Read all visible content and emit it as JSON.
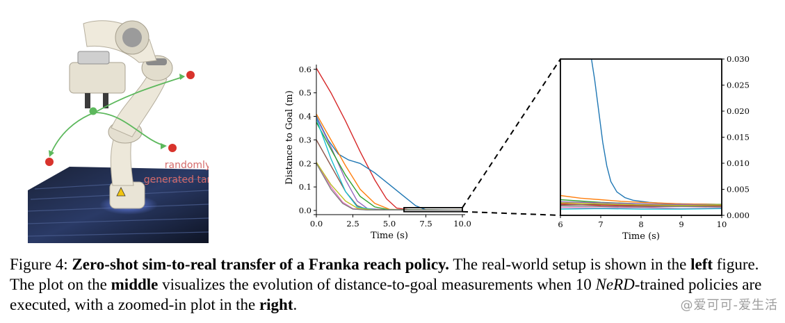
{
  "figure": {
    "label": "Figure 4:",
    "title": "Zero-shot sim-to-real transfer of a Franka reach policy.",
    "caption_parts": [
      " The real-world setup is shown in the ",
      "left",
      " figure. The plot on the ",
      "middle",
      " visualizes the evolution of distance-to-goal measurements when 10 ",
      "NeRD",
      "-trained policies are executed, with a zoomed-in plot in the ",
      "right",
      "."
    ]
  },
  "photo": {
    "annotation_line1": "randomly",
    "annotation_line2": "generated targets",
    "colors": {
      "target": "#d8332c",
      "start": "#5cb85c",
      "arrow": "#5cb85c",
      "label": "#d46a6a"
    }
  },
  "watermark": "@爱可可-爱生活",
  "chart_data": [
    {
      "type": "line",
      "xlabel": "Time (s)",
      "ylabel": "Distance to Goal (m)",
      "xlim": [
        0,
        10
      ],
      "ylim": [
        0,
        0.62
      ],
      "xticks": [
        "0.0",
        "2.5",
        "5.0",
        "7.5",
        "10.0"
      ],
      "yticks": [
        "0.0",
        "0.1",
        "0.2",
        "0.3",
        "0.4",
        "0.5",
        "0.6"
      ],
      "zoom_box": {
        "x": [
          6,
          10
        ],
        "y": [
          0,
          0.03
        ]
      },
      "series": [
        {
          "color": "#d62728",
          "points": [
            [
              0,
              0.605
            ],
            [
              1,
              0.5
            ],
            [
              2,
              0.38
            ],
            [
              3,
              0.25
            ],
            [
              4,
              0.13
            ],
            [
              4.8,
              0.05
            ],
            [
              5.5,
              0.01
            ],
            [
              6.5,
              0.002
            ],
            [
              10,
              0.002
            ]
          ]
        },
        {
          "color": "#1f77b4",
          "points": [
            [
              0,
              0.4
            ],
            [
              0.8,
              0.3
            ],
            [
              1.5,
              0.24
            ],
            [
              2.2,
              0.215
            ],
            [
              3,
              0.2
            ],
            [
              4,
              0.16
            ],
            [
              5,
              0.11
            ],
            [
              6,
              0.06
            ],
            [
              6.8,
              0.02
            ],
            [
              7.5,
              0.003
            ],
            [
              10,
              0.002
            ]
          ]
        },
        {
          "color": "#ff7f0e",
          "points": [
            [
              0,
              0.41
            ],
            [
              1,
              0.3
            ],
            [
              2,
              0.19
            ],
            [
              3,
              0.09
            ],
            [
              4,
              0.03
            ],
            [
              5,
              0.005
            ],
            [
              6,
              0.003
            ],
            [
              10,
              0.002
            ]
          ]
        },
        {
          "color": "#9467bd",
          "points": [
            [
              0,
              0.395
            ],
            [
              1,
              0.27
            ],
            [
              2,
              0.13
            ],
            [
              2.8,
              0.04
            ],
            [
              3.5,
              0.008
            ],
            [
              5,
              0.002
            ],
            [
              10,
              0.002
            ]
          ]
        },
        {
          "color": "#8c564b",
          "points": [
            [
              0,
              0.3
            ],
            [
              1,
              0.19
            ],
            [
              2,
              0.08
            ],
            [
              2.8,
              0.02
            ],
            [
              3.5,
              0.004
            ],
            [
              10,
              0.002
            ]
          ]
        },
        {
          "color": "#2ca02c",
          "points": [
            [
              0,
              0.375
            ],
            [
              1,
              0.26
            ],
            [
              2,
              0.15
            ],
            [
              3,
              0.06
            ],
            [
              4,
              0.015
            ],
            [
              5,
              0.003
            ],
            [
              10,
              0.002
            ]
          ]
        },
        {
          "color": "#17becf",
          "points": [
            [
              0,
              0.39
            ],
            [
              1,
              0.22
            ],
            [
              2,
              0.08
            ],
            [
              2.8,
              0.015
            ],
            [
              4,
              0.003
            ],
            [
              10,
              0.002
            ]
          ]
        },
        {
          "color": "#e377c2",
          "points": [
            [
              0,
              0.205
            ],
            [
              1,
              0.1
            ],
            [
              1.8,
              0.035
            ],
            [
              2.5,
              0.008
            ],
            [
              3.5,
              0.002
            ],
            [
              10,
              0.002
            ]
          ]
        },
        {
          "color": "#bcbd22",
          "points": [
            [
              0,
              0.205
            ],
            [
              1,
              0.11
            ],
            [
              2,
              0.04
            ],
            [
              2.8,
              0.01
            ],
            [
              4,
              0.002
            ],
            [
              10,
              0.002
            ]
          ]
        },
        {
          "color": "#7f7f7f",
          "points": [
            [
              0,
              0.2
            ],
            [
              1,
              0.09
            ],
            [
              1.8,
              0.03
            ],
            [
              2.5,
              0.006
            ],
            [
              3.5,
              0.002
            ],
            [
              10,
              0.002
            ]
          ]
        }
      ]
    },
    {
      "type": "line",
      "xlabel": "Time (s)",
      "ylabel": "",
      "xlim": [
        6,
        10
      ],
      "ylim": [
        0,
        0.03
      ],
      "xticks": [
        "6",
        "7",
        "8",
        "9",
        "10"
      ],
      "yticks": [
        "0.000",
        "0.005",
        "0.010",
        "0.015",
        "0.020",
        "0.025",
        "0.030"
      ],
      "series": [
        {
          "color": "#1f77b4",
          "points": [
            [
              6.75,
              0.031
            ],
            [
              6.85,
              0.026
            ],
            [
              6.95,
              0.02
            ],
            [
              7.05,
              0.014
            ],
            [
              7.15,
              0.0095
            ],
            [
              7.25,
              0.0065
            ],
            [
              7.4,
              0.0045
            ],
            [
              7.6,
              0.0034
            ],
            [
              7.8,
              0.0029
            ],
            [
              8.2,
              0.0025
            ],
            [
              8.6,
              0.0023
            ],
            [
              9,
              0.0022
            ],
            [
              10,
              0.0021
            ]
          ]
        },
        {
          "color": "#ff7f0e",
          "points": [
            [
              6,
              0.0038
            ],
            [
              6.5,
              0.0033
            ],
            [
              7,
              0.003
            ],
            [
              7.5,
              0.0027
            ],
            [
              8,
              0.0025
            ],
            [
              9,
              0.0022
            ],
            [
              10,
              0.0021
            ]
          ]
        },
        {
          "color": "#2ca02c",
          "points": [
            [
              6,
              0.003
            ],
            [
              7,
              0.0025
            ],
            [
              8,
              0.0022
            ],
            [
              9,
              0.002
            ],
            [
              10,
              0.0021
            ]
          ]
        },
        {
          "color": "#d62728",
          "points": [
            [
              6,
              0.0022
            ],
            [
              7,
              0.0019
            ],
            [
              8,
              0.0018
            ],
            [
              9,
              0.0017
            ],
            [
              10,
              0.0018
            ]
          ]
        },
        {
          "color": "#9467bd",
          "points": [
            [
              6,
              0.0026
            ],
            [
              7,
              0.0024
            ],
            [
              8,
              0.0022
            ],
            [
              9,
              0.0021
            ],
            [
              10,
              0.002
            ]
          ]
        },
        {
          "color": "#8c564b",
          "points": [
            [
              6,
              0.002
            ],
            [
              7,
              0.0021
            ],
            [
              8,
              0.0019
            ],
            [
              9,
              0.0018
            ],
            [
              10,
              0.0019
            ]
          ]
        },
        {
          "color": "#e377c2",
          "points": [
            [
              6,
              0.0015
            ],
            [
              7,
              0.0014
            ],
            [
              8,
              0.0015
            ],
            [
              9,
              0.0013
            ],
            [
              10,
              0.0014
            ]
          ]
        },
        {
          "color": "#7f7f7f",
          "points": [
            [
              6,
              0.0018
            ],
            [
              7,
              0.0017
            ],
            [
              8,
              0.0016
            ],
            [
              9,
              0.0017
            ],
            [
              10,
              0.0016
            ]
          ]
        },
        {
          "color": "#bcbd22",
          "points": [
            [
              6,
              0.0024
            ],
            [
              7,
              0.0022
            ],
            [
              8,
              0.002
            ],
            [
              9,
              0.0019
            ],
            [
              10,
              0.002
            ]
          ]
        },
        {
          "color": "#17becf",
          "points": [
            [
              6,
              0.0012
            ],
            [
              7,
              0.0013
            ],
            [
              8,
              0.0012
            ],
            [
              9,
              0.0012
            ],
            [
              10,
              0.0013
            ]
          ]
        }
      ]
    }
  ]
}
